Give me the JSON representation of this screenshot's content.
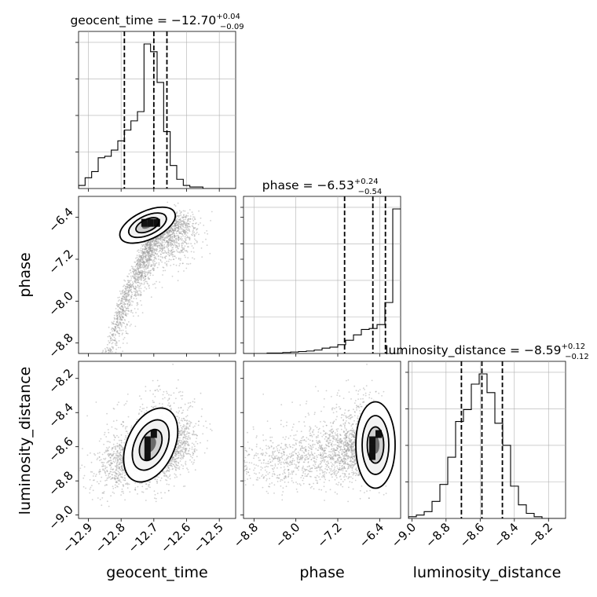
{
  "chart_data": {
    "type": "corner",
    "parameters": [
      "geocent_time",
      "phase",
      "luminosity_distance"
    ],
    "titles": [
      {
        "param": "geocent_time",
        "median": "−12.70",
        "plus": "+0.04",
        "minus": "−0.09"
      },
      {
        "param": "phase",
        "median": "−6.53",
        "plus": "+0.24",
        "minus": "−0.54"
      },
      {
        "param": "luminosity_distance",
        "median": "−8.59",
        "plus": "+0.12",
        "minus": "−0.12"
      }
    ],
    "axis_labels": {
      "x": [
        "geocent_time",
        "phase",
        "luminosity_distance"
      ],
      "y": [
        "phase",
        "luminosity_distance"
      ]
    },
    "ranges": {
      "geocent_time": [
        -12.93,
        -12.45
      ],
      "phase": [
        -9.0,
        -6.0
      ],
      "luminosity_distance": [
        -9.02,
        -8.1
      ]
    },
    "ticks": {
      "geocent_time": [
        {
          "v": -12.9,
          "label": "−12.9"
        },
        {
          "v": -12.8,
          "label": "−12.8"
        },
        {
          "v": -12.7,
          "label": "−12.7"
        },
        {
          "v": -12.6,
          "label": "−12.6"
        },
        {
          "v": -12.5,
          "label": "−12.5"
        }
      ],
      "phase": [
        {
          "v": -8.8,
          "label": "−8.8"
        },
        {
          "v": -8.0,
          "label": "−8.0"
        },
        {
          "v": -7.2,
          "label": "−7.2"
        },
        {
          "v": -6.4,
          "label": "−6.4"
        }
      ],
      "luminosity_distance": [
        {
          "v": -9.0,
          "label": "−9.0"
        },
        {
          "v": -8.8,
          "label": "−8.8"
        },
        {
          "v": -8.6,
          "label": "−8.6"
        },
        {
          "v": -8.4,
          "label": "−8.4"
        },
        {
          "v": -8.2,
          "label": "−8.2"
        }
      ]
    },
    "quantiles": {
      "geocent_time": [
        -12.79,
        -12.7,
        -12.66
      ],
      "phase": [
        -7.07,
        -6.53,
        -6.29
      ],
      "luminosity_distance": [
        -8.71,
        -8.59,
        -8.47
      ]
    },
    "hist": {
      "geocent_time": {
        "edges_start": -12.93,
        "bin_width": 0.02,
        "counts": [
          2,
          7,
          11,
          20,
          21,
          25,
          31,
          38,
          44,
          50,
          94,
          89,
          69,
          37,
          15,
          6,
          2,
          1,
          1,
          0,
          0,
          0,
          0,
          0
        ]
      },
      "phase": {
        "edges_start": -9.0,
        "bin_width": 0.15,
        "counts": [
          0,
          0,
          0,
          1,
          1,
          2,
          3,
          4,
          5,
          7,
          11,
          13,
          18,
          27,
          38,
          49,
          51,
          59,
          104,
          295
        ]
      },
      "luminosity_distance": {
        "edges_start": -9.02,
        "bin_width": 0.046,
        "counts": [
          1,
          2,
          4,
          10,
          20,
          36,
          57,
          64,
          79,
          85,
          74,
          56,
          43,
          19,
          8,
          3,
          1,
          0,
          0,
          0
        ]
      }
    },
    "grid": true
  }
}
